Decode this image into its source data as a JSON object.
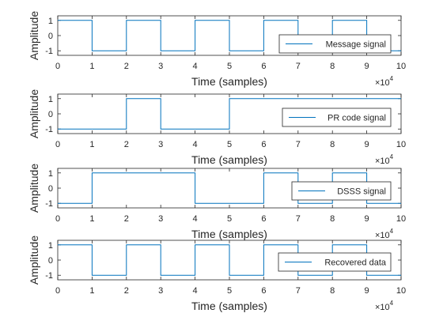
{
  "chart_data": [
    {
      "type": "line",
      "xlabel": "Time (samples)",
      "ylabel": "Amplitude",
      "xlim": [
        0,
        10
      ],
      "x_multiplier": {
        "base": "×10",
        "exponent": "4"
      },
      "ylim": [
        -1.3,
        1.3
      ],
      "xticks": [
        "0",
        "1",
        "2",
        "3",
        "4",
        "5",
        "6",
        "7",
        "8",
        "9",
        "10"
      ],
      "yticks": [
        "1",
        "0",
        "-1"
      ],
      "legend_position": "right",
      "series": [
        {
          "name": "Message signal",
          "color": "#0072BD",
          "x": [
            0,
            1,
            1,
            2,
            2,
            3,
            3,
            4,
            4,
            5,
            5,
            6,
            6,
            7,
            7,
            8,
            8,
            9,
            9,
            10
          ],
          "y": [
            1,
            1,
            -1,
            -1,
            1,
            1,
            -1,
            -1,
            1,
            1,
            -1,
            -1,
            1,
            1,
            -1,
            -1,
            1,
            1,
            -1,
            -1
          ]
        }
      ]
    },
    {
      "type": "line",
      "xlabel": "Time (samples)",
      "ylabel": "Amplitude",
      "xlim": [
        0,
        10
      ],
      "x_multiplier": {
        "base": "×10",
        "exponent": "4"
      },
      "ylim": [
        -1.3,
        1.3
      ],
      "xticks": [
        "0",
        "1",
        "2",
        "3",
        "4",
        "5",
        "6",
        "7",
        "8",
        "9",
        "10"
      ],
      "yticks": [
        "1",
        "0",
        "-1"
      ],
      "legend_position": "right",
      "series": [
        {
          "name": "PR code signal",
          "color": "#0072BD",
          "x": [
            0,
            2,
            2,
            3,
            3,
            5,
            5,
            10
          ],
          "y": [
            -1,
            -1,
            1,
            1,
            -1,
            -1,
            1,
            1
          ]
        }
      ]
    },
    {
      "type": "line",
      "xlabel": "Time (samples)",
      "ylabel": "Amplitude",
      "xlim": [
        0,
        10
      ],
      "x_multiplier": {
        "base": "×10",
        "exponent": "4"
      },
      "ylim": [
        -1.3,
        1.3
      ],
      "xticks": [
        "0",
        "1",
        "2",
        "3",
        "4",
        "5",
        "6",
        "7",
        "8",
        "9",
        "10"
      ],
      "yticks": [
        "1",
        "0",
        "-1"
      ],
      "legend_position": "right",
      "series": [
        {
          "name": "DSSS signal",
          "color": "#0072BD",
          "x": [
            0,
            1,
            1,
            4,
            4,
            6,
            6,
            7,
            7,
            8,
            8,
            9,
            9,
            10
          ],
          "y": [
            -1,
            -1,
            1,
            1,
            -1,
            -1,
            1,
            1,
            -1,
            -1,
            1,
            1,
            -1,
            -1
          ]
        }
      ]
    },
    {
      "type": "line",
      "xlabel": "Time (samples)",
      "ylabel": "Amplitude",
      "xlim": [
        0,
        10
      ],
      "x_multiplier": {
        "base": "×10",
        "exponent": "4"
      },
      "ylim": [
        -1.3,
        1.3
      ],
      "xticks": [
        "0",
        "1",
        "2",
        "3",
        "4",
        "5",
        "6",
        "7",
        "8",
        "9",
        "10"
      ],
      "yticks": [
        "1",
        "0",
        "-1"
      ],
      "legend_position": "right",
      "series": [
        {
          "name": "Recovered data",
          "color": "#0072BD",
          "x": [
            0,
            1,
            1,
            2,
            2,
            3,
            3,
            4,
            4,
            5,
            5,
            6,
            6,
            7,
            7,
            8,
            8,
            9,
            9,
            10
          ],
          "y": [
            1,
            1,
            -1,
            -1,
            1,
            1,
            -1,
            -1,
            1,
            1,
            -1,
            -1,
            1,
            1,
            -1,
            -1,
            1,
            1,
            -1,
            -1
          ]
        }
      ]
    }
  ]
}
